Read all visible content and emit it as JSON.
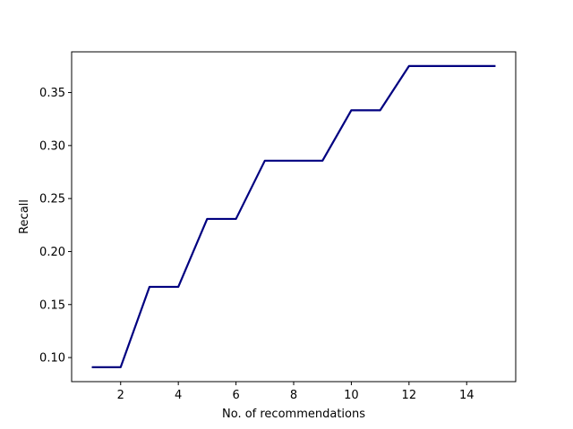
{
  "chart_data": {
    "type": "line",
    "title": "",
    "xlabel": "No. of recommendations",
    "ylabel": "Recall",
    "xlim": [
      0.3,
      15.7
    ],
    "ylim": [
      0.0773,
      0.3884
    ],
    "xticks": [
      2,
      4,
      6,
      8,
      10,
      12,
      14
    ],
    "xtick_labels": [
      "2",
      "4",
      "6",
      "8",
      "10",
      "12",
      "14"
    ],
    "yticks": [
      0.1,
      0.15,
      0.2,
      0.25,
      0.3,
      0.35
    ],
    "ytick_labels": [
      "0.10",
      "0.15",
      "0.20",
      "0.25",
      "0.30",
      "0.35"
    ],
    "grid": false,
    "series": [
      {
        "color": "#000080",
        "x": [
          1,
          2,
          3,
          4,
          5,
          6,
          7,
          8,
          9,
          10,
          11,
          12,
          13,
          14,
          15
        ],
        "y": [
          0.0909,
          0.0909,
          0.1667,
          0.1667,
          0.2308,
          0.2308,
          0.2857,
          0.2857,
          0.2857,
          0.3333,
          0.3333,
          0.375,
          0.375,
          0.375,
          0.375
        ]
      }
    ]
  }
}
